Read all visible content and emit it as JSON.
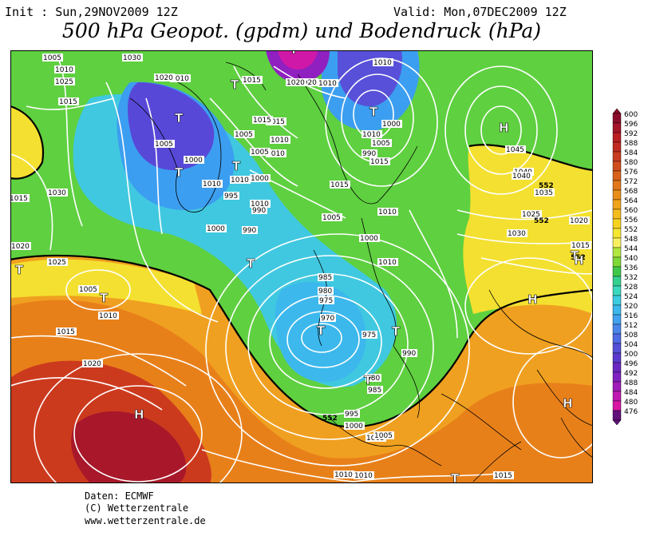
{
  "header": {
    "init": "Init : Sun,29NOV2009 12Z",
    "valid": "Valid: Mon,07DEC2009 12Z",
    "title": "500 hPa Geopot. (gpdm) und Bodendruck (hPa)"
  },
  "legend": {
    "values": [
      "600",
      "596",
      "592",
      "588",
      "584",
      "580",
      "576",
      "572",
      "568",
      "564",
      "560",
      "556",
      "552",
      "548",
      "544",
      "540",
      "536",
      "532",
      "528",
      "524",
      "520",
      "516",
      "512",
      "508",
      "504",
      "500",
      "496",
      "492",
      "488",
      "484",
      "480",
      "476"
    ],
    "colors": [
      "#8b0d2c",
      "#a4142a",
      "#b81e24",
      "#c02a22",
      "#c83c20",
      "#d04d1e",
      "#d8621c",
      "#e0781a",
      "#e88e18",
      "#f0a41a",
      "#f4bc1c",
      "#f6d220",
      "#f6e634",
      "#f8f060",
      "#b2e640",
      "#7ed838",
      "#3ec84a",
      "#34d090",
      "#3ad8bc",
      "#3ccce0",
      "#3cb8ec",
      "#42a2ee",
      "#4a86ea",
      "#4e6ae4",
      "#5450d8",
      "#5a3acc",
      "#6a28c0",
      "#8022c0",
      "#a01cb8",
      "#c018b0",
      "#d816a4",
      "#62107a"
    ]
  },
  "map": {
    "features": [
      "500 hPa geopotential shading",
      "surface pressure isobars",
      "coastlines",
      "borders"
    ],
    "isobar_labels": [
      "1005",
      "1030",
      "1010",
      "1025",
      "1010",
      "1015",
      "1020",
      "1015",
      "1005",
      "1000",
      "1010",
      "1010",
      "1005",
      "1000",
      "995",
      "990",
      "1005",
      "1010",
      "1000",
      "985",
      "980",
      "975",
      "970",
      "975",
      "990",
      "980",
      "985",
      "995",
      "1000",
      "1005",
      "1010",
      "1015",
      "1020",
      "1025",
      "1030",
      "1035",
      "1040",
      "1045",
      "1040",
      "1020",
      "1015",
      "1005",
      "1010",
      "1015",
      "1020",
      "1025",
      "1030",
      "1000",
      "1010",
      "1015",
      "1010",
      "1010",
      "1015",
      "1020",
      "1005",
      "1010",
      "1010",
      "1000",
      "1005",
      "1010",
      "990",
      "990",
      "1010",
      "1020",
      "1015",
      "1015",
      "1010",
      "1015",
      "1005"
    ],
    "contour_labels": [
      "552",
      "552",
      "552",
      "552"
    ],
    "centers": [
      {
        "symbol": "T",
        "role": "low"
      },
      {
        "symbol": "T",
        "role": "low"
      },
      {
        "symbol": "T",
        "role": "low"
      },
      {
        "symbol": "T",
        "role": "low"
      },
      {
        "symbol": "T",
        "role": "low"
      },
      {
        "symbol": "T",
        "role": "low"
      },
      {
        "symbol": "T",
        "role": "low"
      },
      {
        "symbol": "T",
        "role": "low"
      },
      {
        "symbol": "T",
        "role": "low"
      },
      {
        "symbol": "T",
        "role": "low"
      },
      {
        "symbol": "T",
        "role": "low"
      },
      {
        "symbol": "T",
        "role": "low"
      },
      {
        "symbol": "T",
        "role": "low"
      },
      {
        "symbol": "T",
        "role": "low"
      },
      {
        "symbol": "H",
        "role": "high"
      },
      {
        "symbol": "H",
        "role": "high"
      },
      {
        "symbol": "H",
        "role": "high"
      },
      {
        "symbol": "H",
        "role": "high"
      },
      {
        "symbol": "H",
        "role": "high"
      }
    ]
  },
  "footer": {
    "source": "Daten: ECMWF",
    "copyright": "(C) Wetterzentrale",
    "url": "www.wetterzentrale.de"
  }
}
